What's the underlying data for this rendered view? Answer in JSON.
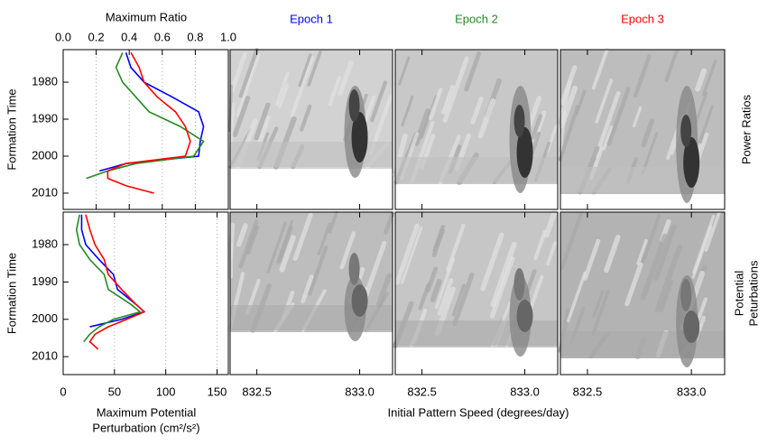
{
  "chart_data": [
    {
      "type": "line",
      "title": "Maximum Ratio",
      "ylabel": "Formation Time",
      "xlim": [
        0,
        1
      ],
      "xticks": [
        {
          "value": 0,
          "label": "0.0"
        },
        {
          "value": 0.2,
          "label": "0.2"
        },
        {
          "value": 0.4,
          "label": "0.4"
        },
        {
          "value": 0.6,
          "label": "0.6"
        },
        {
          "value": 0.8,
          "label": "0.8"
        },
        {
          "value": 1,
          "label": "1.0"
        }
      ],
      "ylim": [
        1971.2,
        2014.4
      ],
      "yticks": [
        1980,
        1990,
        2000,
        2010
      ],
      "grid": true,
      "y": [
        1972,
        1976,
        1980,
        1984,
        1988,
        1992,
        1996,
        2000,
        2002,
        2004,
        2006,
        2008,
        2010
      ],
      "series": [
        {
          "name": "Epoch 1",
          "color": "#0000ff",
          "values": [
            0.38,
            0.41,
            0.49,
            0.66,
            0.82,
            0.85,
            0.83,
            0.82,
            0.38,
            0.22,
            null,
            null,
            null
          ]
        },
        {
          "name": "Epoch 2",
          "color": "#228b22",
          "values": [
            0.36,
            0.32,
            0.36,
            0.44,
            0.52,
            0.71,
            0.85,
            0.79,
            0.44,
            0.27,
            0.14,
            null,
            null
          ]
        },
        {
          "name": "Epoch 3",
          "color": "#ff0000",
          "values": [
            0.41,
            0.46,
            0.49,
            0.57,
            0.68,
            0.74,
            0.77,
            0.74,
            0.38,
            0.27,
            0.27,
            0.38,
            0.55
          ]
        }
      ]
    },
    {
      "type": "line",
      "xlabel": [
        "Maximum Potential",
        "Perturbation (cm²/s²)"
      ],
      "ylabel": "Formation Time",
      "xlim": [
        0,
        161
      ],
      "xticks": [
        0,
        50,
        100,
        150
      ],
      "ylim": [
        1971.3,
        2014.8
      ],
      "yticks": [
        1980,
        1990,
        2000,
        2010
      ],
      "grid": true,
      "y": [
        1972,
        1976,
        1980,
        1984,
        1988,
        1992,
        1996,
        1998,
        2000,
        2002,
        2004,
        2006,
        2008
      ],
      "series": [
        {
          "color": "#0000ff",
          "values": [
            18,
            18,
            22,
            35,
            49,
            53,
            71,
            79,
            57,
            26,
            null,
            null,
            null
          ]
        },
        {
          "color": "#228b22",
          "values": [
            16,
            13,
            16,
            26,
            40,
            44,
            66,
            75,
            49,
            35,
            26,
            20,
            null
          ]
        },
        {
          "color": "#ff0000",
          "values": [
            22,
            26,
            31,
            40,
            44,
            57,
            71,
            79,
            62,
            44,
            31,
            26,
            34
          ]
        }
      ]
    },
    {
      "type": "contour",
      "xlabel": "Initial Pattern Speed (degrees/day)",
      "xlim": [
        832.37,
        833.16
      ],
      "xticks": [
        832.5,
        {
          "value": 833,
          "label": "833.0"
        }
      ],
      "row_labels": [
        [
          "Power Ratios"
        ],
        [
          "Potential",
          "Peturbations"
        ]
      ]
    }
  ]
}
